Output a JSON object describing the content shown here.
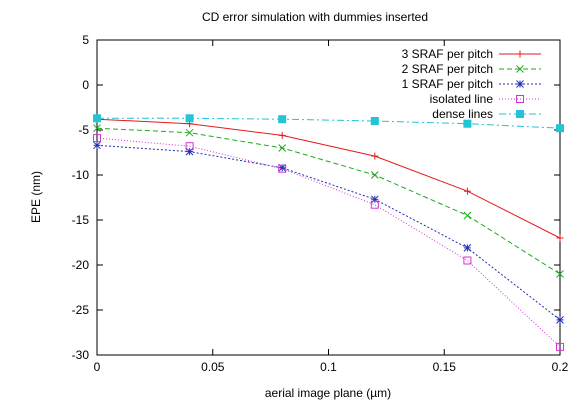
{
  "chart_data": {
    "type": "line",
    "title": "CD error simulation with dummies inserted",
    "xlabel": "aerial image plane (µm)",
    "ylabel": "EPE (nm)",
    "xlim": [
      0,
      0.2
    ],
    "ylim": [
      -30,
      5
    ],
    "x_ticks": [
      0,
      0.05,
      0.1,
      0.15,
      0.2
    ],
    "x_tick_labels": [
      "0",
      "0.05",
      "0.1",
      "0.15",
      "0.2"
    ],
    "y_ticks": [
      5,
      0,
      -5,
      -10,
      -15,
      -20,
      -25,
      -30
    ],
    "y_tick_labels": [
      "5",
      "0",
      "-5",
      "-10",
      "-15",
      "-20",
      "-25",
      "-30"
    ],
    "grid": false,
    "legend_position": "top-right",
    "x": [
      0,
      0.04,
      0.08,
      0.12,
      0.16,
      0.2
    ],
    "series": [
      {
        "name": "3 SRAF per pitch",
        "color": "#e41a1c",
        "marker": "plus",
        "dash": "solid",
        "values": [
          -3.8,
          -4.3,
          -5.6,
          -7.9,
          -11.8,
          -17.0
        ]
      },
      {
        "name": "2 SRAF per pitch",
        "color": "#1faa1f",
        "marker": "cross",
        "dash": "dashed",
        "values": [
          -4.8,
          -5.3,
          -7.0,
          -10.0,
          -14.5,
          -21.0
        ]
      },
      {
        "name": "1 SRAF per pitch",
        "color": "#1f2fb3",
        "marker": "star",
        "dash": "dotted",
        "values": [
          -6.7,
          -7.4,
          -9.2,
          -12.7,
          -18.1,
          -26.1
        ]
      },
      {
        "name": "isolated line",
        "color": "#d633d6",
        "marker": "square",
        "dash": "densedot",
        "values": [
          -5.9,
          -6.8,
          -9.3,
          -13.3,
          -19.5,
          -29.1
        ]
      },
      {
        "name": "dense lines",
        "color": "#22c4d6",
        "marker": "filled-square",
        "dash": "dashdot",
        "values": [
          -3.7,
          -3.7,
          -3.8,
          -4.0,
          -4.3,
          -4.8
        ]
      }
    ]
  }
}
